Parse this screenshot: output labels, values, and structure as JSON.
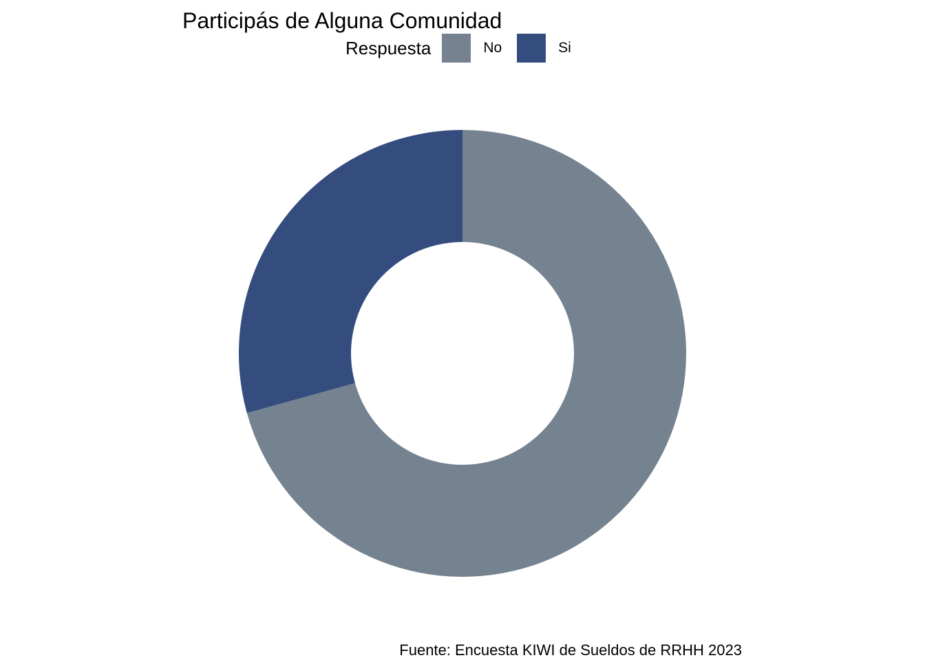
{
  "chart_data": {
    "type": "pie",
    "variant": "donut",
    "title": "Participás de Alguna Comunidad",
    "legend": {
      "title": "Respuesta",
      "position": "top"
    },
    "categories": [
      "No",
      "Si"
    ],
    "values": [
      70.7,
      29.3
    ],
    "colors": [
      "#758290",
      "#344D7E"
    ],
    "start": "12 o'clock",
    "direction": "clockwise",
    "caption": "Fuente: Encuesta KIWI de Sueldos de RRHH 2023"
  }
}
